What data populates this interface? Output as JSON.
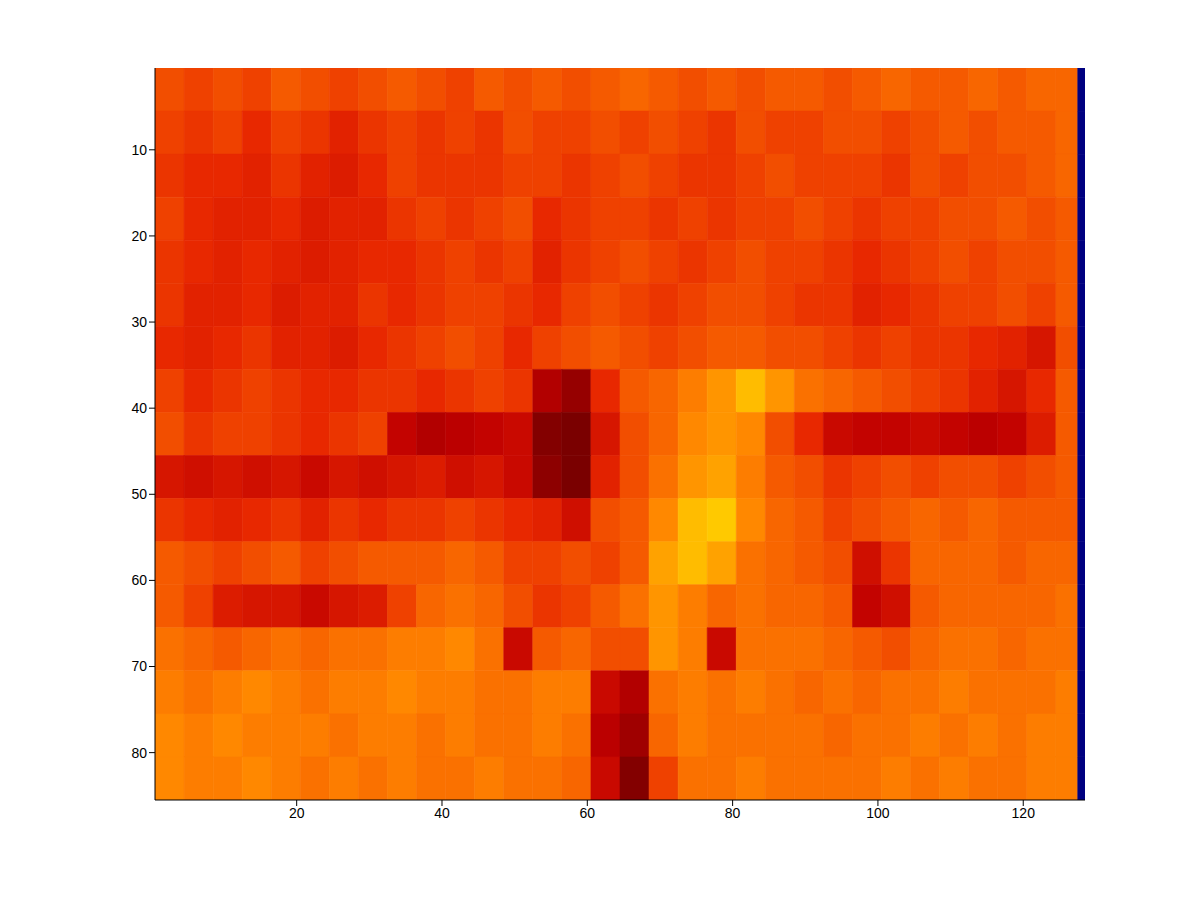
{
  "chart_data": {
    "type": "heatmap",
    "x_edges": [
      0.5,
      4.5,
      8.5,
      12.5,
      16.5,
      20.5,
      24.5,
      28.5,
      32.5,
      36.5,
      40.5,
      44.5,
      48.5,
      52.5,
      56.5,
      60.5,
      64.5,
      68.5,
      72.5,
      76.5,
      80.5,
      84.5,
      88.5,
      92.5,
      96.5,
      100.5,
      104.5,
      108.5,
      112.5,
      116.5,
      120.5,
      124.5,
      127.5,
      128.5
    ],
    "y_edges": [
      0.5,
      5.5,
      10.5,
      15.5,
      20.5,
      25.5,
      30.5,
      35.5,
      40.5,
      45.5,
      50.5,
      55.5,
      60.5,
      65.5,
      70.5,
      75.5,
      80.5,
      85.5
    ],
    "cells": [
      [
        74,
        72,
        74,
        72,
        76,
        74,
        72,
        74,
        76,
        74,
        72,
        76,
        74,
        76,
        74,
        76,
        78,
        76,
        74,
        76,
        74,
        76,
        76,
        74,
        76,
        78,
        76,
        76,
        78,
        76,
        78,
        78,
        0
      ],
      [
        72,
        70,
        72,
        68,
        72,
        70,
        66,
        70,
        72,
        70,
        72,
        70,
        74,
        72,
        72,
        74,
        72,
        74,
        72,
        70,
        74,
        72,
        72,
        74,
        74,
        72,
        74,
        76,
        74,
        76,
        76,
        78,
        0
      ],
      [
        70,
        68,
        68,
        66,
        70,
        66,
        64,
        68,
        72,
        70,
        70,
        70,
        72,
        72,
        70,
        72,
        74,
        72,
        70,
        70,
        72,
        74,
        72,
        72,
        72,
        70,
        74,
        72,
        74,
        74,
        76,
        78,
        0
      ],
      [
        72,
        68,
        66,
        66,
        68,
        64,
        66,
        66,
        70,
        72,
        70,
        72,
        74,
        68,
        70,
        72,
        72,
        70,
        72,
        70,
        72,
        72,
        74,
        72,
        70,
        72,
        72,
        74,
        74,
        76,
        74,
        76,
        0
      ],
      [
        70,
        68,
        66,
        68,
        66,
        64,
        66,
        68,
        68,
        70,
        72,
        70,
        72,
        66,
        70,
        72,
        74,
        72,
        70,
        72,
        74,
        72,
        72,
        70,
        68,
        70,
        72,
        74,
        72,
        74,
        74,
        76,
        0
      ],
      [
        70,
        66,
        66,
        68,
        64,
        66,
        66,
        70,
        68,
        70,
        72,
        72,
        70,
        68,
        72,
        74,
        72,
        70,
        72,
        74,
        74,
        72,
        70,
        70,
        66,
        68,
        70,
        72,
        72,
        74,
        72,
        76,
        0
      ],
      [
        68,
        66,
        68,
        70,
        66,
        66,
        64,
        68,
        70,
        72,
        74,
        72,
        68,
        72,
        74,
        76,
        74,
        72,
        74,
        76,
        76,
        74,
        74,
        72,
        70,
        72,
        70,
        70,
        68,
        66,
        62,
        74,
        0
      ],
      [
        72,
        68,
        70,
        72,
        70,
        68,
        68,
        70,
        70,
        68,
        70,
        72,
        70,
        52,
        46,
        68,
        76,
        78,
        82,
        86,
        92,
        86,
        80,
        78,
        76,
        74,
        72,
        70,
        66,
        62,
        68,
        76,
        0
      ],
      [
        74,
        70,
        72,
        72,
        70,
        68,
        70,
        72,
        56,
        52,
        54,
        56,
        58,
        42,
        38,
        62,
        74,
        78,
        84,
        86,
        84,
        74,
        68,
        58,
        56,
        56,
        58,
        56,
        54,
        56,
        64,
        76,
        0
      ],
      [
        62,
        60,
        62,
        60,
        62,
        58,
        62,
        60,
        62,
        64,
        60,
        62,
        58,
        44,
        40,
        66,
        74,
        80,
        86,
        88,
        82,
        76,
        74,
        70,
        72,
        74,
        72,
        74,
        74,
        72,
        74,
        76,
        0
      ],
      [
        70,
        68,
        66,
        68,
        70,
        66,
        70,
        68,
        70,
        70,
        72,
        70,
        68,
        66,
        60,
        74,
        76,
        84,
        92,
        94,
        84,
        78,
        76,
        72,
        74,
        76,
        78,
        76,
        78,
        76,
        76,
        76,
        0
      ],
      [
        76,
        74,
        72,
        74,
        76,
        72,
        74,
        76,
        76,
        76,
        78,
        76,
        72,
        72,
        74,
        72,
        76,
        88,
        92,
        88,
        80,
        78,
        76,
        74,
        60,
        70,
        78,
        78,
        78,
        76,
        78,
        78,
        0
      ],
      [
        76,
        72,
        64,
        62,
        62,
        58,
        62,
        64,
        72,
        78,
        80,
        78,
        74,
        70,
        72,
        76,
        80,
        86,
        82,
        78,
        80,
        78,
        78,
        76,
        56,
        60,
        76,
        78,
        78,
        78,
        78,
        80,
        0
      ],
      [
        80,
        78,
        76,
        78,
        80,
        78,
        80,
        80,
        82,
        82,
        84,
        80,
        58,
        76,
        78,
        74,
        74,
        86,
        82,
        58,
        80,
        80,
        80,
        78,
        76,
        74,
        78,
        80,
        80,
        78,
        80,
        80,
        0
      ],
      [
        82,
        80,
        82,
        84,
        82,
        80,
        82,
        82,
        84,
        82,
        82,
        80,
        80,
        82,
        82,
        58,
        52,
        80,
        82,
        80,
        82,
        80,
        78,
        80,
        78,
        80,
        80,
        82,
        80,
        80,
        80,
        82,
        0
      ],
      [
        84,
        82,
        84,
        82,
        82,
        82,
        80,
        82,
        82,
        80,
        82,
        80,
        80,
        82,
        80,
        54,
        48,
        78,
        82,
        80,
        80,
        80,
        80,
        78,
        80,
        80,
        82,
        80,
        82,
        80,
        82,
        82,
        0
      ],
      [
        84,
        82,
        82,
        84,
        82,
        80,
        82,
        80,
        82,
        80,
        80,
        82,
        80,
        80,
        78,
        58,
        42,
        72,
        80,
        80,
        82,
        80,
        80,
        80,
        80,
        82,
        80,
        82,
        80,
        80,
        82,
        82,
        0
      ]
    ],
    "xlim": [
      0.5,
      128.5
    ],
    "ylim": [
      0.5,
      85.5
    ],
    "xticks": [
      20,
      40,
      60,
      80,
      100,
      120
    ],
    "yticks": [
      10,
      20,
      30,
      40,
      50,
      60,
      70,
      80
    ]
  }
}
